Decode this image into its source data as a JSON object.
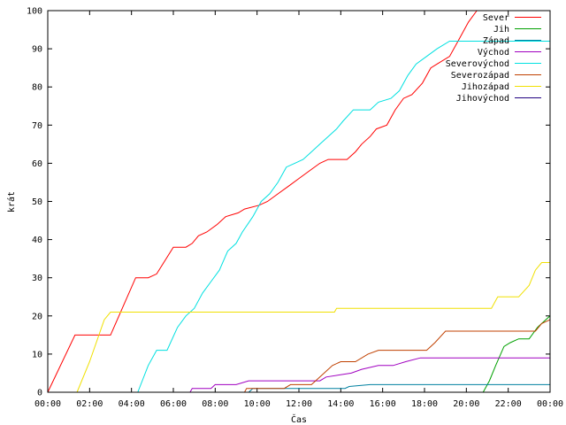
{
  "chart_data": {
    "type": "line",
    "title": "",
    "xlabel": "Čas",
    "ylabel": "krát",
    "xlim": [
      0,
      24
    ],
    "ylim": [
      0,
      100
    ],
    "x_tick_labels": [
      "00:00",
      "02:00",
      "04:00",
      "06:00",
      "08:00",
      "10:00",
      "12:00",
      "14:00",
      "16:00",
      "18:00",
      "20:00",
      "22:00",
      "00:00"
    ],
    "y_tick_labels": [
      "0",
      "10",
      "20",
      "30",
      "40",
      "50",
      "60",
      "70",
      "80",
      "90",
      "100"
    ],
    "grid": false,
    "legend_position": "top-right",
    "x_unit": "hours since 00:00",
    "series": [
      {
        "name": "Sever",
        "color": "#ff0000",
        "points": [
          [
            0,
            0
          ],
          [
            1.3,
            15
          ],
          [
            3,
            15
          ],
          [
            4.2,
            30
          ],
          [
            4.8,
            30
          ],
          [
            5.2,
            31
          ],
          [
            6,
            38
          ],
          [
            6.6,
            38
          ],
          [
            6.9,
            39
          ],
          [
            7.2,
            41
          ],
          [
            7.6,
            42
          ],
          [
            8.1,
            44
          ],
          [
            8.5,
            46
          ],
          [
            9.1,
            47
          ],
          [
            9.4,
            48
          ],
          [
            10.1,
            49
          ],
          [
            10.5,
            50
          ],
          [
            11,
            52
          ],
          [
            11.5,
            54
          ],
          [
            12,
            56
          ],
          [
            12.5,
            58
          ],
          [
            13,
            60
          ],
          [
            13.4,
            61
          ],
          [
            14.3,
            61
          ],
          [
            14.7,
            63
          ],
          [
            15,
            65
          ],
          [
            15.4,
            67
          ],
          [
            15.7,
            69
          ],
          [
            16.2,
            70
          ],
          [
            16.6,
            74
          ],
          [
            17,
            77
          ],
          [
            17.4,
            78
          ],
          [
            17.9,
            81
          ],
          [
            18.3,
            85
          ],
          [
            18.6,
            86
          ],
          [
            19.2,
            88
          ],
          [
            19.6,
            92
          ],
          [
            20.1,
            97
          ],
          [
            20.5,
            100
          ]
        ]
      },
      {
        "name": "Jih",
        "color": "#00a000",
        "points": [
          [
            20.8,
            0
          ],
          [
            21.1,
            3
          ],
          [
            21.4,
            7
          ],
          [
            21.8,
            12
          ],
          [
            22.1,
            13
          ],
          [
            22.5,
            14
          ],
          [
            23,
            14
          ],
          [
            23.4,
            17
          ],
          [
            23.6,
            18
          ],
          [
            24,
            20
          ]
        ]
      },
      {
        "name": "Západ",
        "color": "#0080a0",
        "points": [
          [
            9.6,
            0
          ],
          [
            9.8,
            1
          ],
          [
            14.2,
            1
          ],
          [
            14.4,
            1.5
          ],
          [
            15.4,
            2
          ],
          [
            24,
            2
          ]
        ]
      },
      {
        "name": "Východ",
        "color": "#a000c0",
        "points": [
          [
            6.8,
            0
          ],
          [
            6.9,
            1
          ],
          [
            7.8,
            1
          ],
          [
            8,
            2
          ],
          [
            9,
            2
          ],
          [
            9.6,
            3
          ],
          [
            13,
            3
          ],
          [
            13.3,
            4
          ],
          [
            14.5,
            5
          ],
          [
            15,
            6
          ],
          [
            15.8,
            7
          ],
          [
            16.5,
            7
          ],
          [
            17.1,
            8
          ],
          [
            17.8,
            9
          ],
          [
            24,
            9
          ]
        ]
      },
      {
        "name": "Severovýchod",
        "color": "#00e0e0",
        "points": [
          [
            4.3,
            0
          ],
          [
            4.8,
            7
          ],
          [
            5.2,
            11
          ],
          [
            5.7,
            11
          ],
          [
            6.2,
            17
          ],
          [
            6.6,
            20
          ],
          [
            7,
            22
          ],
          [
            7.4,
            26
          ],
          [
            7.8,
            29
          ],
          [
            8.2,
            32
          ],
          [
            8.6,
            37
          ],
          [
            9,
            39
          ],
          [
            9.3,
            42
          ],
          [
            9.8,
            46
          ],
          [
            10.2,
            50
          ],
          [
            10.6,
            52
          ],
          [
            11,
            55
          ],
          [
            11.4,
            59
          ],
          [
            11.8,
            60
          ],
          [
            12.2,
            61
          ],
          [
            12.6,
            63
          ],
          [
            13,
            65
          ],
          [
            13.4,
            67
          ],
          [
            13.8,
            69
          ],
          [
            14.1,
            71
          ],
          [
            14.6,
            74
          ],
          [
            15.4,
            74
          ],
          [
            15.8,
            76
          ],
          [
            16.4,
            77
          ],
          [
            16.8,
            79
          ],
          [
            17.2,
            83
          ],
          [
            17.6,
            86
          ],
          [
            18.1,
            88
          ],
          [
            18.6,
            90
          ],
          [
            19.2,
            92
          ],
          [
            24,
            92
          ]
        ]
      },
      {
        "name": "Severozápad",
        "color": "#c04000",
        "points": [
          [
            9.4,
            0
          ],
          [
            9.5,
            1
          ],
          [
            11.3,
            1
          ],
          [
            11.6,
            2
          ],
          [
            12.6,
            2
          ],
          [
            13,
            4
          ],
          [
            13.6,
            7
          ],
          [
            14,
            8
          ],
          [
            14.7,
            8
          ],
          [
            15.3,
            10
          ],
          [
            15.8,
            11
          ],
          [
            18.1,
            11
          ],
          [
            18.5,
            13
          ],
          [
            19,
            16
          ],
          [
            23.3,
            16
          ],
          [
            23.6,
            18
          ],
          [
            24,
            19
          ]
        ]
      },
      {
        "name": "Jihozápad",
        "color": "#f0e000",
        "points": [
          [
            1.4,
            0
          ],
          [
            2,
            8
          ],
          [
            2.7,
            19
          ],
          [
            3,
            21
          ],
          [
            13.7,
            21
          ],
          [
            13.8,
            22
          ],
          [
            21.2,
            22
          ],
          [
            21.5,
            25
          ],
          [
            22.5,
            25
          ],
          [
            23,
            28
          ],
          [
            23.3,
            32
          ],
          [
            23.6,
            34
          ],
          [
            24,
            34
          ]
        ]
      },
      {
        "name": "Jihovýchod",
        "color": "#200080",
        "points": []
      }
    ]
  }
}
